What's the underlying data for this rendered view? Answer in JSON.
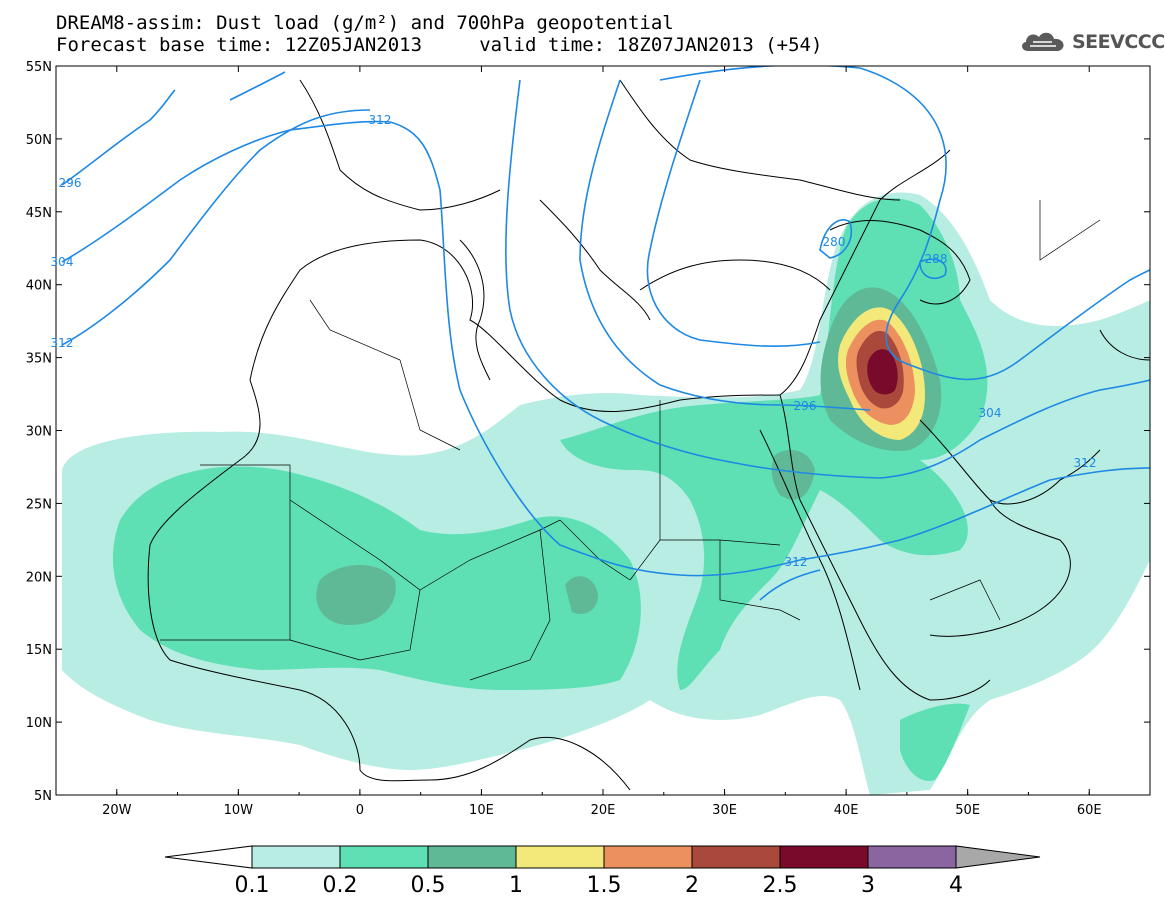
{
  "title": {
    "line1": "DREAM8-assim: Dust load (g/m²) and 700hPa geopotential",
    "line2": "Forecast base time: 12Z05JAN2013     valid time: 18Z07JAN2013 (+54)"
  },
  "logo": {
    "text": "SEEVCCC",
    "icon": "cloud-icon"
  },
  "map": {
    "lon_range": [
      -25,
      65
    ],
    "lat_range": [
      5,
      55
    ],
    "lat_labels": [
      "55N",
      "50N",
      "45N",
      "40N",
      "35N",
      "30N",
      "25N",
      "20N",
      "15N",
      "10N",
      "5N"
    ],
    "lon_labels": [
      "20W",
      "10W",
      "0",
      "10E",
      "20E",
      "30E",
      "40E",
      "50E",
      "60E"
    ]
  },
  "colorbar": {
    "labels": [
      "0.1",
      "0.2",
      "0.5",
      "1",
      "1.5",
      "2",
      "2.5",
      "3",
      "4"
    ],
    "colors": [
      "#b7ede2",
      "#5fe0b4",
      "#5fb896",
      "#f3e87a",
      "#ec9060",
      "#a8493c",
      "#7a0a2c",
      "#8a65a0"
    ],
    "under_color": "#ffffff",
    "over_color": "#a8a8a8"
  },
  "geopotential_labels": [
    "296",
    "304",
    "312",
    "312",
    "280",
    "288",
    "296",
    "304",
    "312",
    "312"
  ],
  "contour_color": "#1e88e5"
}
